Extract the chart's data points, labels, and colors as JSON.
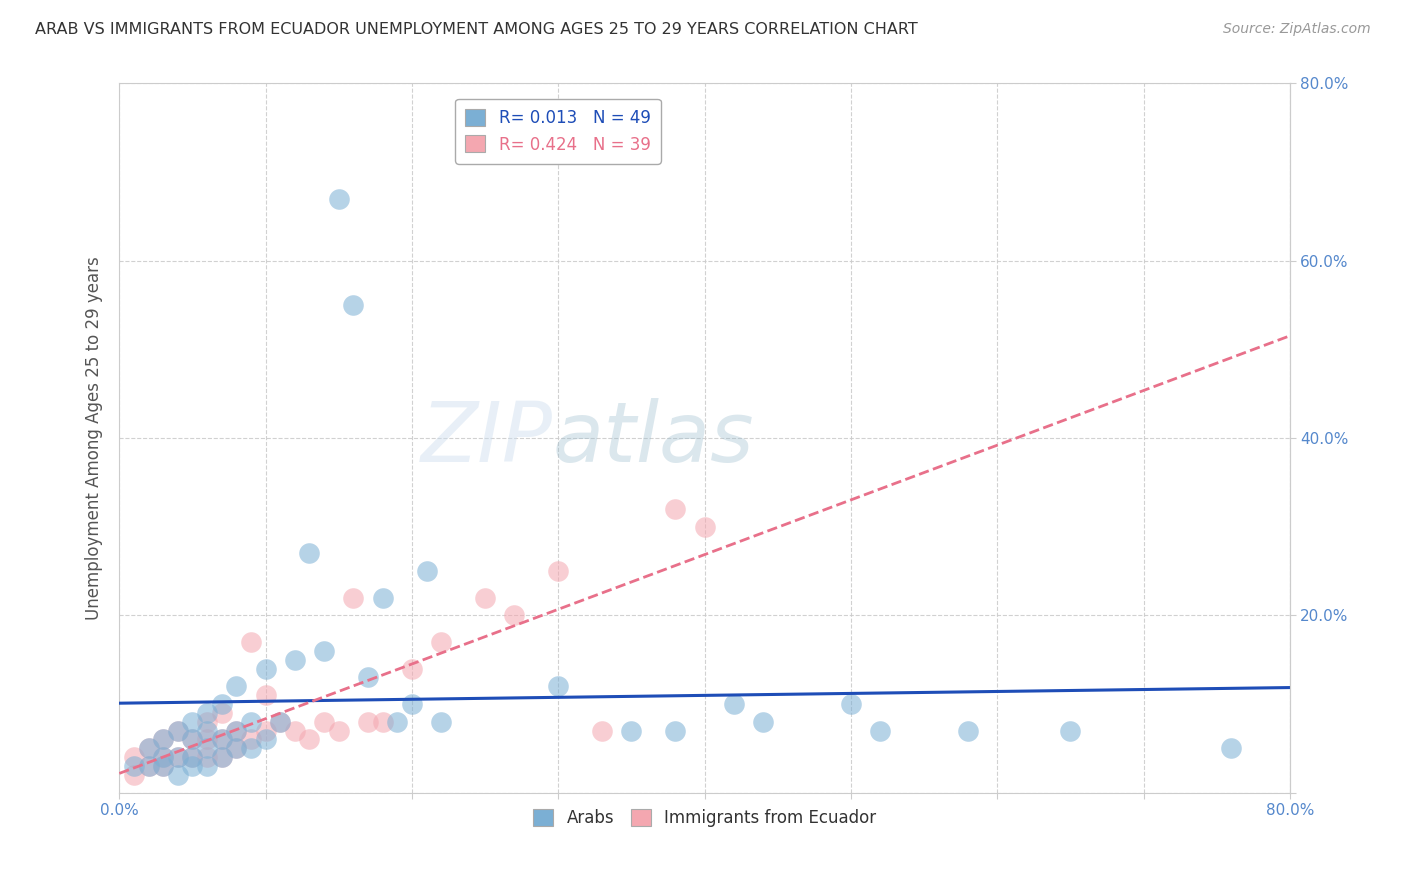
{
  "title": "ARAB VS IMMIGRANTS FROM ECUADOR UNEMPLOYMENT AMONG AGES 25 TO 29 YEARS CORRELATION CHART",
  "source": "Source: ZipAtlas.com",
  "ylabel": "Unemployment Among Ages 25 to 29 years",
  "xlim": [
    0.0,
    0.8
  ],
  "ylim": [
    0.0,
    0.8
  ],
  "xticks": [
    0.0,
    0.1,
    0.2,
    0.3,
    0.4,
    0.5,
    0.6,
    0.7,
    0.8
  ],
  "yticks": [
    0.0,
    0.2,
    0.4,
    0.6,
    0.8
  ],
  "watermark_zip": "ZIP",
  "watermark_atlas": "atlas",
  "arab_R": 0.013,
  "arab_N": 49,
  "ecuador_R": 0.424,
  "ecuador_N": 39,
  "arab_color": "#7BAFD4",
  "ecuador_color": "#F4A7B0",
  "arab_line_color": "#1E4DB7",
  "ecuador_line_color": "#E8708A",
  "background_color": "#FFFFFF",
  "grid_color": "#CCCCCC",
  "title_color": "#333333",
  "tick_label_color": "#5588CC",
  "arab_scatter_x": [
    0.01,
    0.02,
    0.02,
    0.03,
    0.03,
    0.03,
    0.04,
    0.04,
    0.04,
    0.05,
    0.05,
    0.05,
    0.05,
    0.06,
    0.06,
    0.06,
    0.06,
    0.07,
    0.07,
    0.07,
    0.08,
    0.08,
    0.08,
    0.09,
    0.09,
    0.1,
    0.1,
    0.11,
    0.12,
    0.13,
    0.14,
    0.15,
    0.16,
    0.17,
    0.18,
    0.19,
    0.2,
    0.21,
    0.22,
    0.3,
    0.35,
    0.38,
    0.42,
    0.44,
    0.5,
    0.52,
    0.58,
    0.65,
    0.76
  ],
  "arab_scatter_y": [
    0.03,
    0.03,
    0.05,
    0.03,
    0.04,
    0.06,
    0.02,
    0.04,
    0.07,
    0.03,
    0.04,
    0.06,
    0.08,
    0.03,
    0.05,
    0.07,
    0.09,
    0.04,
    0.06,
    0.1,
    0.05,
    0.07,
    0.12,
    0.05,
    0.08,
    0.06,
    0.14,
    0.08,
    0.15,
    0.27,
    0.16,
    0.67,
    0.55,
    0.13,
    0.22,
    0.08,
    0.1,
    0.25,
    0.08,
    0.12,
    0.07,
    0.07,
    0.1,
    0.08,
    0.1,
    0.07,
    0.07,
    0.07,
    0.05
  ],
  "ecuador_scatter_x": [
    0.01,
    0.01,
    0.02,
    0.02,
    0.03,
    0.03,
    0.03,
    0.04,
    0.04,
    0.05,
    0.05,
    0.06,
    0.06,
    0.06,
    0.07,
    0.07,
    0.07,
    0.08,
    0.08,
    0.09,
    0.09,
    0.1,
    0.1,
    0.11,
    0.12,
    0.13,
    0.14,
    0.15,
    0.16,
    0.17,
    0.18,
    0.2,
    0.22,
    0.25,
    0.27,
    0.3,
    0.33,
    0.38,
    0.4
  ],
  "ecuador_scatter_y": [
    0.02,
    0.04,
    0.03,
    0.05,
    0.03,
    0.04,
    0.06,
    0.04,
    0.07,
    0.04,
    0.06,
    0.04,
    0.06,
    0.08,
    0.04,
    0.06,
    0.09,
    0.05,
    0.07,
    0.06,
    0.17,
    0.07,
    0.11,
    0.08,
    0.07,
    0.06,
    0.08,
    0.07,
    0.22,
    0.08,
    0.08,
    0.14,
    0.17,
    0.22,
    0.2,
    0.25,
    0.07,
    0.32,
    0.3
  ]
}
